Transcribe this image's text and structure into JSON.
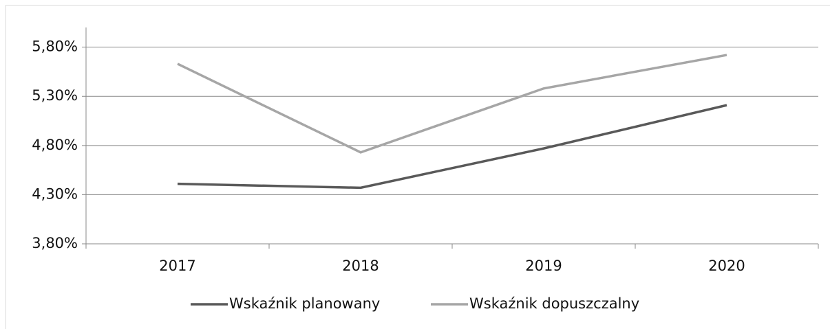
{
  "chart_data": {
    "type": "line",
    "categories": [
      "2017",
      "2018",
      "2019",
      "2020"
    ],
    "series": [
      {
        "name": "Wskaźnik planowany",
        "color": "#595959",
        "values": [
          4.41,
          4.37,
          4.77,
          5.21
        ]
      },
      {
        "name": "Wskaźnik dopuszczalny",
        "color": "#a6a6a6",
        "values": [
          5.63,
          4.73,
          5.38,
          5.72
        ]
      }
    ],
    "ylim": [
      3.8,
      6.0
    ],
    "yticks": [
      {
        "value": 3.8,
        "label": "3,80%"
      },
      {
        "value": 4.3,
        "label": "4,30%"
      },
      {
        "value": 4.8,
        "label": "4,80%"
      },
      {
        "value": 5.3,
        "label": "5,30%"
      },
      {
        "value": 5.8,
        "label": "5,80%"
      }
    ],
    "grid": true,
    "legend": "bottom"
  }
}
